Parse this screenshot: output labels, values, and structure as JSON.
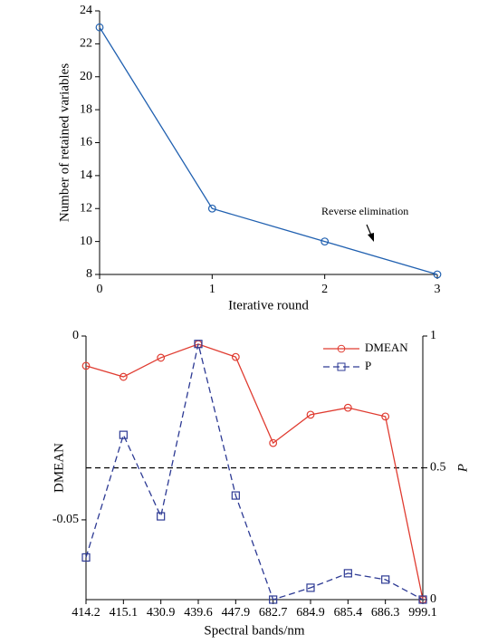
{
  "chart_data": [
    {
      "type": "line",
      "x": [
        0,
        1,
        2,
        3
      ],
      "series": [
        {
          "color": "#2060b0",
          "marker": "circle",
          "values": [
            23,
            12,
            10,
            8
          ]
        }
      ],
      "xlim": [
        0,
        3
      ],
      "xticks": [
        0,
        1,
        2,
        3
      ],
      "ylim": [
        8,
        24
      ],
      "yticks": [
        8,
        10,
        12,
        14,
        16,
        18,
        20,
        22,
        24
      ],
      "xlabel": "Iterative round",
      "ylabel": "Number of retained variables",
      "annotation": "Reverse elimination"
    },
    {
      "type": "line",
      "categories": [
        "414.2",
        "415.1",
        "430.9",
        "439.6",
        "447.9",
        "682.7",
        "684.9",
        "685.4",
        "686.3",
        "999.1"
      ],
      "series": [
        {
          "name": "DMEAN",
          "color": "#e03c31",
          "marker": "circle",
          "values": [
            -0.0081,
            -0.0111,
            -0.0059,
            -0.0022,
            -0.0057,
            -0.0291,
            -0.0214,
            -0.0195,
            -0.0219,
            -0.0717
          ]
        },
        {
          "name": "P",
          "color": "#2d3a94",
          "marker": "square",
          "dash": true,
          "axis": "y2",
          "values": [
            0.16,
            0.625,
            0.316,
            0.97,
            0.395,
            0,
            0.045,
            0.1,
            0.076,
            0
          ]
        }
      ],
      "ylim": [
        -0.0717,
        0
      ],
      "yticks": [
        -0.05,
        0
      ],
      "y2lim": [
        0,
        1
      ],
      "y2ticks": [
        0,
        0.5,
        1
      ],
      "hline": {
        "value": 0.5,
        "axis": "y2"
      },
      "xlabel": "Spectral bands/nm",
      "ylabel": "DMEAN",
      "y2label": "P",
      "legend": "upper right"
    }
  ]
}
